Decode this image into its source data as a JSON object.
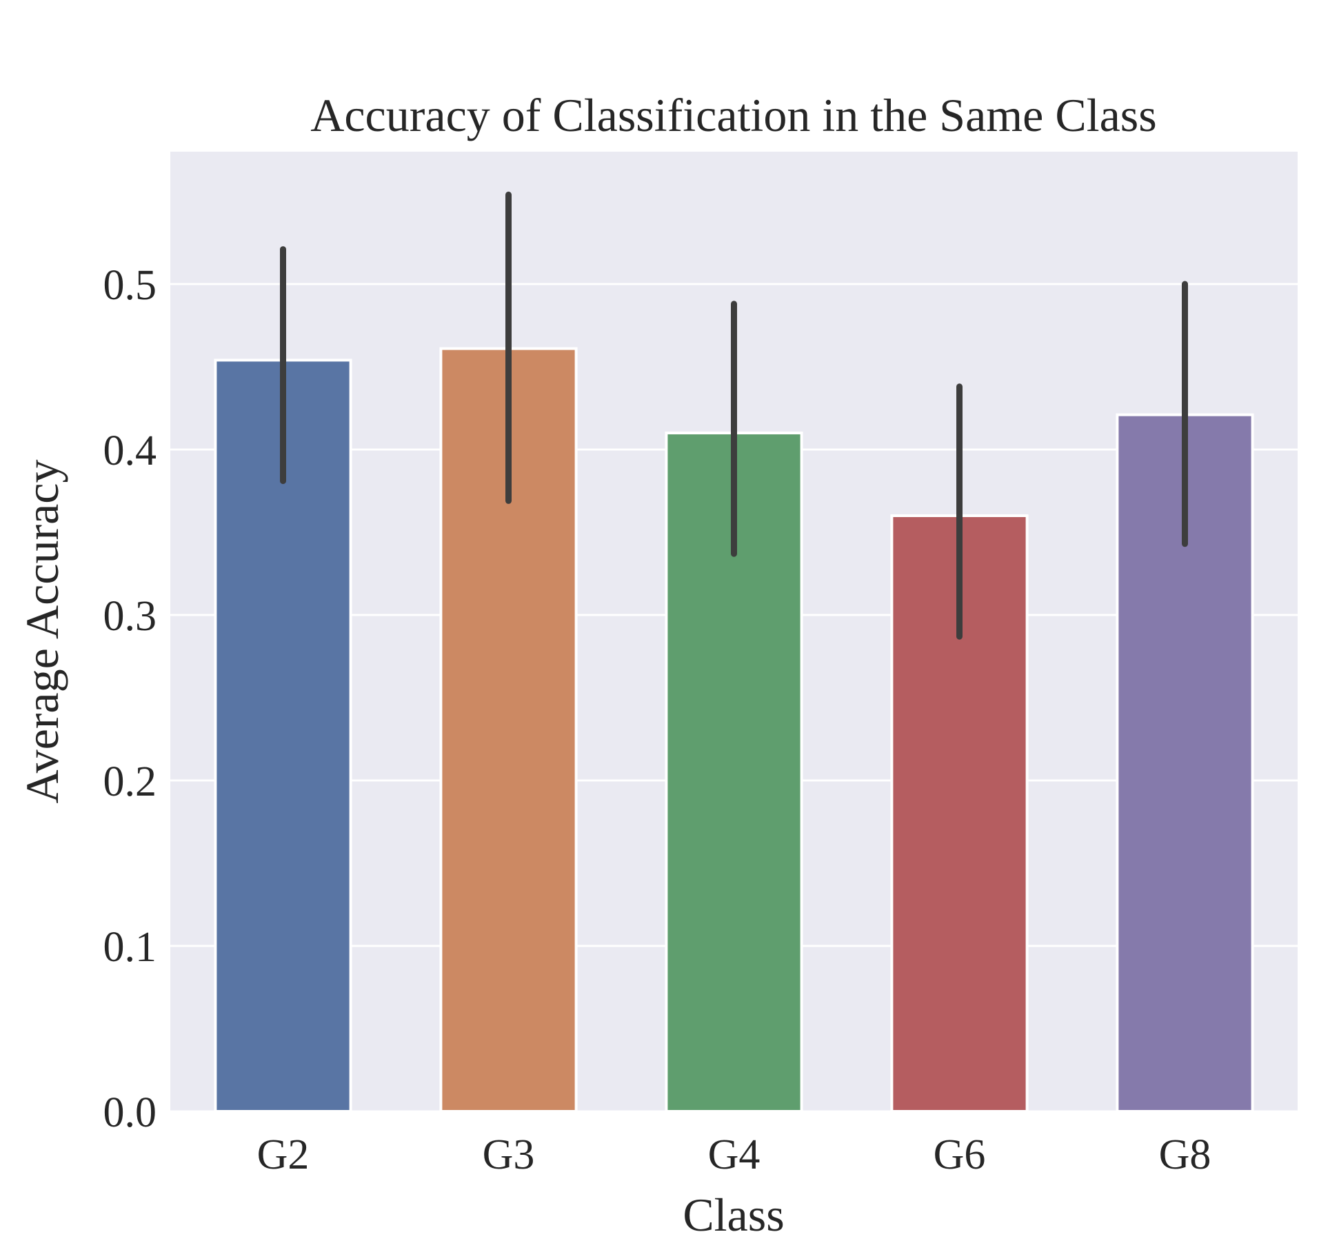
{
  "chart_data": {
    "type": "bar",
    "title": "Accuracy of Classification in the Same Class",
    "xlabel": "Class",
    "ylabel": "Average Accuracy",
    "categories": [
      "G2",
      "G3",
      "G4",
      "G6",
      "G8"
    ],
    "values": [
      0.454,
      0.461,
      0.41,
      0.36,
      0.421
    ],
    "error_low": [
      0.381,
      0.369,
      0.337,
      0.287,
      0.343
    ],
    "error_high": [
      0.521,
      0.554,
      0.488,
      0.438,
      0.5
    ],
    "ylim": [
      0,
      0.58
    ],
    "yticks": [
      0.0,
      0.1,
      0.2,
      0.3,
      0.4,
      0.5
    ],
    "ytick_labels": [
      "0.0",
      "0.1",
      "0.2",
      "0.3",
      "0.4",
      "0.5"
    ],
    "grid": true,
    "colors": [
      "#5975a4",
      "#cc8963",
      "#5f9e6e",
      "#b55d60",
      "#857aab"
    ],
    "errorbar_color": "#3d3d3d",
    "background_color": "#eaeaf2"
  }
}
